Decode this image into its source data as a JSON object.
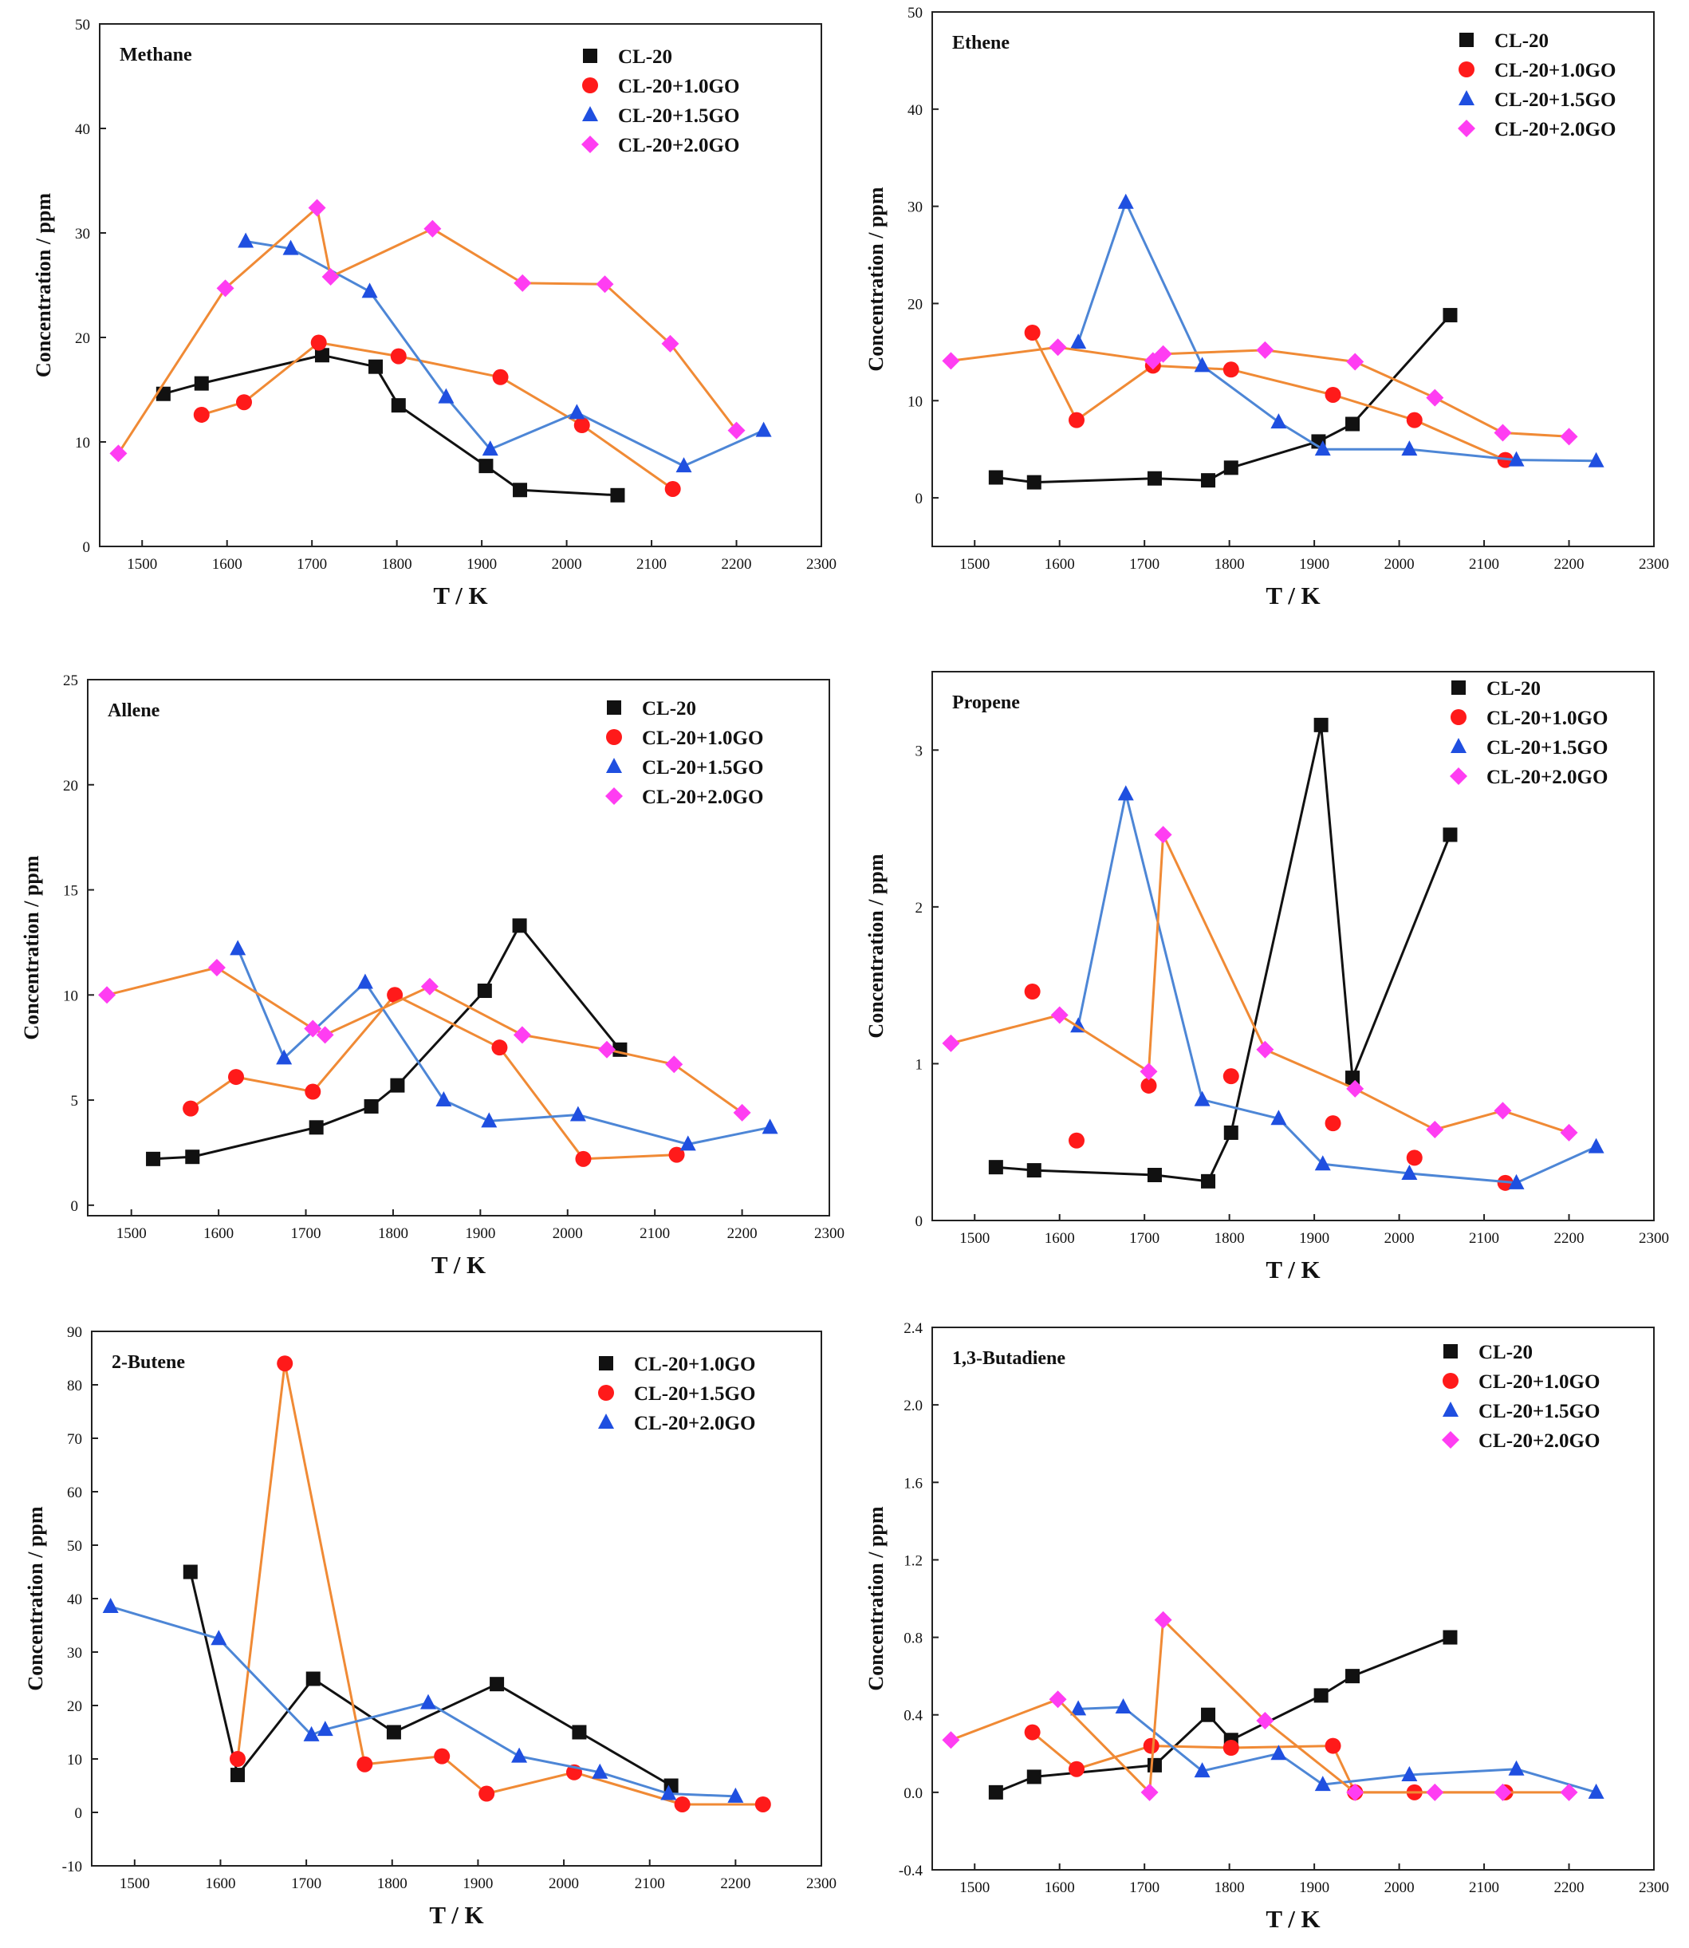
{
  "colors": {
    "black": "#111111",
    "red": "#ff1a1a",
    "blue": "#1f4fe0",
    "magenta": "#ff3df2",
    "orange": "#f08a35",
    "blue_line": "#4d86d6"
  },
  "chart_data": [
    {
      "type": "line",
      "title": "Methane",
      "xlabel": "T / K",
      "ylabel": "Concentration / ppm",
      "xlim": [
        1450,
        2300
      ],
      "ylim": [
        0,
        50
      ],
      "xticks": [
        1500,
        1600,
        1700,
        1800,
        1900,
        2000,
        2100,
        2200,
        2300
      ],
      "yticks": [
        0,
        10,
        20,
        30,
        40,
        50
      ],
      "legend": [
        "CL-20",
        "CL-20+1.0GO",
        "CL-20+1.5GO",
        "CL-20+2.0GO"
      ],
      "series": [
        {
          "name": "CL-20",
          "marker": "square",
          "color": "black",
          "line": "black",
          "x": [
            1525,
            1570,
            1712,
            1775,
            1802,
            1905,
            1945,
            2060
          ],
          "y": [
            14.6,
            15.6,
            18.3,
            17.2,
            13.5,
            7.7,
            5.4,
            4.9
          ]
        },
        {
          "name": "CL-20+1.0GO",
          "marker": "circle",
          "color": "red",
          "line": "orange",
          "x": [
            1570,
            1620,
            1708,
            1802,
            1922,
            2018,
            2125
          ],
          "y": [
            12.6,
            13.8,
            19.5,
            18.2,
            16.2,
            11.6,
            5.5
          ]
        },
        {
          "name": "CL-20+1.5GO",
          "marker": "triangle",
          "color": "blue",
          "line": "blue_line",
          "x": [
            1622,
            1675,
            1768,
            1858,
            1910,
            2012,
            2138,
            2232
          ],
          "y": [
            29.2,
            28.5,
            24.4,
            14.3,
            9.3,
            12.8,
            7.7,
            11.1
          ]
        },
        {
          "name": "CL-20+2.0GO",
          "marker": "diamond",
          "color": "magenta",
          "line": "orange",
          "x": [
            1472,
            1598,
            1706,
            1722,
            1842,
            1948,
            2045,
            2122,
            2200
          ],
          "y": [
            8.9,
            24.7,
            32.4,
            25.8,
            30.4,
            25.2,
            25.1,
            19.4,
            11.1
          ]
        }
      ]
    },
    {
      "type": "line",
      "title": "Ethene",
      "xlabel": "T / K",
      "ylabel": "Concentration / ppm",
      "xlim": [
        1450,
        2300
      ],
      "ylim": [
        -5,
        50
      ],
      "xticks": [
        1500,
        1600,
        1700,
        1800,
        1900,
        2000,
        2100,
        2200,
        2300
      ],
      "yticks": [
        0,
        10,
        20,
        30,
        40,
        50
      ],
      "legend": [
        "CL-20",
        "CL-20+1.0GO",
        "CL-20+1.5GO",
        "CL-20+2.0GO"
      ],
      "series": [
        {
          "name": "CL-20",
          "marker": "square",
          "color": "black",
          "line": "black",
          "x": [
            1525,
            1570,
            1712,
            1775,
            1802,
            1905,
            1945,
            2060
          ],
          "y": [
            2.1,
            1.6,
            2.0,
            1.8,
            3.1,
            5.8,
            7.6,
            18.8
          ]
        },
        {
          "name": "CL-20+1.0GO",
          "marker": "circle",
          "color": "red",
          "line": "orange",
          "x": [
            1568,
            1620,
            1710,
            1802,
            1922,
            2018,
            2125
          ],
          "y": [
            17.0,
            8.0,
            13.6,
            13.2,
            10.6,
            8.0,
            3.9
          ]
        },
        {
          "name": "CL-20+1.5GO",
          "marker": "triangle",
          "color": "blue",
          "line": "blue_line",
          "x": [
            1622,
            1678,
            1768,
            1858,
            1910,
            2012,
            2138,
            2232
          ],
          "y": [
            16.0,
            30.4,
            13.6,
            7.8,
            5.0,
            5.0,
            3.9,
            3.8
          ]
        },
        {
          "name": "CL-20+2.0GO",
          "marker": "diamond",
          "color": "magenta",
          "line": "orange",
          "x": [
            1472,
            1598,
            1710,
            1722,
            1842,
            1948,
            2042,
            2122,
            2200
          ],
          "y": [
            14.1,
            15.5,
            14.1,
            14.8,
            15.2,
            14.0,
            10.3,
            6.7,
            6.3
          ]
        }
      ]
    },
    {
      "type": "line",
      "title": "Allene",
      "xlabel": "T / K",
      "ylabel": "Concentration / ppm",
      "xlim": [
        1450,
        2300
      ],
      "ylim": [
        -0.5,
        25
      ],
      "xticks": [
        1500,
        1600,
        1700,
        1800,
        1900,
        2000,
        2100,
        2200,
        2300
      ],
      "yticks": [
        0,
        5,
        10,
        15,
        20,
        25
      ],
      "legend": [
        "CL-20",
        "CL-20+1.0GO",
        "CL-20+1.5GO",
        "CL-20+2.0GO"
      ],
      "series": [
        {
          "name": "CL-20",
          "marker": "square",
          "color": "black",
          "line": "black",
          "x": [
            1525,
            1570,
            1712,
            1775,
            1805,
            1905,
            1945,
            2060
          ],
          "y": [
            2.2,
            2.3,
            3.7,
            4.7,
            5.7,
            10.2,
            13.3,
            7.4
          ]
        },
        {
          "name": "CL-20+1.0GO",
          "marker": "circle",
          "color": "red",
          "line": "orange",
          "x": [
            1568,
            1620,
            1708,
            1802,
            1922,
            2018,
            2125
          ],
          "y": [
            4.6,
            6.1,
            5.4,
            10.0,
            7.5,
            2.2,
            2.4
          ]
        },
        {
          "name": "CL-20+1.5GO",
          "marker": "triangle",
          "color": "blue",
          "line": "blue_line",
          "x": [
            1622,
            1675,
            1768,
            1858,
            1910,
            2012,
            2138,
            2232
          ],
          "y": [
            12.2,
            7.0,
            10.6,
            5.0,
            4.0,
            4.3,
            2.9,
            3.7
          ]
        },
        {
          "name": "CL-20+2.0GO",
          "marker": "diamond",
          "color": "magenta",
          "line": "orange",
          "x": [
            1472,
            1598,
            1708,
            1722,
            1842,
            1948,
            2045,
            2122,
            2200
          ],
          "y": [
            10.0,
            11.3,
            8.4,
            8.1,
            10.4,
            8.1,
            7.4,
            6.7,
            4.4
          ]
        }
      ]
    },
    {
      "type": "line",
      "title": "Propene",
      "xlabel": "T / K",
      "ylabel": "Concentration / ppm",
      "xlim": [
        1450,
        2300
      ],
      "ylim": [
        0,
        3.5
      ],
      "xticks": [
        1500,
        1600,
        1700,
        1800,
        1900,
        2000,
        2100,
        2200,
        2300
      ],
      "yticks": [
        0,
        1,
        2,
        3
      ],
      "legend": [
        "CL-20",
        "CL-20+1.0GO",
        "CL-20+1.5GO",
        "CL-20+2.0GO"
      ],
      "series": [
        {
          "name": "CL-20",
          "marker": "square",
          "color": "black",
          "line": "black",
          "x": [
            1525,
            1570,
            1712,
            1775,
            1802,
            1908,
            1945,
            2060
          ],
          "y": [
            0.34,
            0.32,
            0.29,
            0.25,
            0.56,
            3.16,
            0.91,
            2.46
          ]
        },
        {
          "name": "CL-20+1.0GO",
          "marker": "circle",
          "color": "red",
          "line": "none",
          "x": [
            1568,
            1620,
            1705,
            1802,
            1922,
            2018,
            2125
          ],
          "y": [
            1.46,
            0.51,
            0.86,
            0.92,
            0.62,
            0.4,
            0.24
          ]
        },
        {
          "name": "CL-20+1.5GO",
          "marker": "triangle",
          "color": "blue",
          "line": "blue_line",
          "x": [
            1622,
            1678,
            1768,
            1858,
            1910,
            2012,
            2138,
            2232
          ],
          "y": [
            1.24,
            2.72,
            0.77,
            0.65,
            0.36,
            0.3,
            0.24,
            0.47
          ]
        },
        {
          "name": "CL-20+2.0GO",
          "marker": "diamond",
          "color": "magenta",
          "line": "orange",
          "x": [
            1472,
            1600,
            1705,
            1722,
            1842,
            1948,
            2042,
            2122,
            2200
          ],
          "y": [
            1.13,
            1.31,
            0.95,
            2.46,
            1.09,
            0.84,
            0.58,
            0.7,
            0.56
          ]
        }
      ]
    },
    {
      "type": "line",
      "title": "2-Butene",
      "xlabel": "T / K",
      "ylabel": "Concentration / ppm",
      "xlim": [
        1450,
        2300
      ],
      "ylim": [
        -10,
        90
      ],
      "xticks": [
        1500,
        1600,
        1700,
        1800,
        1900,
        2000,
        2100,
        2200,
        2300
      ],
      "yticks": [
        -10,
        0,
        10,
        20,
        30,
        40,
        50,
        60,
        70,
        80,
        90
      ],
      "legend": [
        "CL-20+1.0GO",
        "CL-20+1.5GO",
        "CL-20+2.0GO"
      ],
      "series": [
        {
          "name": "CL-20+1.0GO",
          "marker": "square",
          "color": "black",
          "line": "black",
          "x": [
            1565,
            1620,
            1708,
            1802,
            1922,
            2018,
            2125
          ],
          "y": [
            45,
            7,
            25,
            15,
            24,
            15,
            5
          ]
        },
        {
          "name": "CL-20+1.5GO",
          "marker": "circle",
          "color": "red",
          "line": "orange",
          "x": [
            1620,
            1675,
            1768,
            1858,
            1910,
            2012,
            2138,
            2232
          ],
          "y": [
            10,
            84,
            9,
            10.5,
            3.5,
            7.5,
            1.5,
            1.5
          ]
        },
        {
          "name": "CL-20+2.0GO",
          "marker": "triangle",
          "color": "blue",
          "line": "blue_line",
          "x": [
            1472,
            1598,
            1706,
            1722,
            1842,
            1948,
            2042,
            2122,
            2200
          ],
          "y": [
            38.5,
            32.5,
            14.5,
            15.5,
            20.5,
            10.5,
            7.5,
            3.5,
            3
          ]
        }
      ]
    },
    {
      "type": "line",
      "title": "1,3-Butadiene",
      "xlabel": "T / K",
      "ylabel": "Concentration / ppm",
      "xlim": [
        1450,
        2300
      ],
      "ylim": [
        -0.4,
        2.4
      ],
      "xticks": [
        1500,
        1600,
        1700,
        1800,
        1900,
        2000,
        2100,
        2200,
        2300
      ],
      "yticks": [
        -0.4,
        0.0,
        0.4,
        0.8,
        1.2,
        1.6,
        2.0,
        2.4
      ],
      "ytick_labels": [
        "-0.4",
        "0.0",
        "0.4",
        "0.8",
        "1.2",
        "1.6",
        "2.0",
        "2.4"
      ],
      "legend": [
        "CL-20",
        "CL-20+1.0GO",
        "CL-20+1.5GO",
        "CL-20+2.0GO"
      ],
      "series": [
        {
          "name": "CL-20",
          "marker": "square",
          "color": "black",
          "line": "black",
          "x": [
            1525,
            1570,
            1712,
            1775,
            1802,
            1908,
            1945,
            2060
          ],
          "y": [
            0.0,
            0.08,
            0.14,
            0.4,
            0.27,
            0.5,
            0.6,
            0.8
          ]
        },
        {
          "name": "CL-20+1.0GO",
          "marker": "circle",
          "color": "red",
          "line": "orange",
          "x": [
            1568,
            1620,
            1708,
            1802,
            1922,
            1948,
            2018,
            2125
          ],
          "y": [
            0.31,
            0.12,
            0.24,
            0.23,
            0.24,
            0.0,
            0.0,
            0.0
          ]
        },
        {
          "name": "CL-20+1.5GO",
          "marker": "triangle",
          "color": "blue",
          "line": "blue_line",
          "x": [
            1622,
            1675,
            1768,
            1858,
            1910,
            2012,
            2138,
            2232
          ],
          "y": [
            0.43,
            0.44,
            0.11,
            0.2,
            0.04,
            0.09,
            0.12,
            0.0
          ]
        },
        {
          "name": "CL-20+2.0GO",
          "marker": "diamond",
          "color": "magenta",
          "line": "orange",
          "x": [
            1472,
            1598,
            1706,
            1722,
            1842,
            1948,
            2042,
            2122,
            2200
          ],
          "y": [
            0.27,
            0.48,
            0.0,
            0.89,
            0.37,
            0.0,
            0.0,
            0.0,
            0.0
          ]
        }
      ]
    }
  ]
}
